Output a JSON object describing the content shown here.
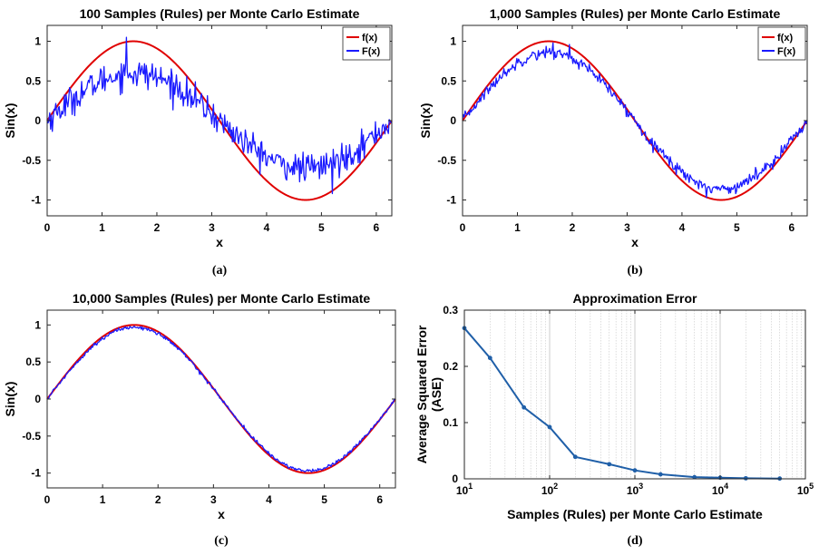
{
  "colors": {
    "f_line": "#e00000",
    "F_line": "#1a1aff",
    "error_line": "#1f5fa8",
    "axis": "#262626",
    "grid": "#c8c8c8"
  },
  "chart_data": [
    {
      "panel_letter": "(a)",
      "type": "line",
      "title": "100 Samples (Rules) per Monte Carlo Estimate",
      "xlabel": "x",
      "ylabel": "Sin(x)",
      "xlim": [
        0,
        6.283
      ],
      "ylim": [
        -1.2,
        1.2
      ],
      "xticks": [
        0,
        1,
        2,
        3,
        4,
        5,
        6
      ],
      "yticks": [
        -1,
        -0.5,
        0,
        0.5,
        1
      ],
      "legend": {
        "placement": "top-right"
      },
      "series": [
        {
          "name": "f(x)",
          "function": "sin(x)",
          "points": 300
        },
        {
          "name": "F(x)",
          "function": "sin(x) estimate",
          "points": 400,
          "noise_sd": 0.09,
          "envelope": 0.6,
          "spikes": [
            [
              1.45,
              1.05
            ],
            [
              5.2,
              -0.92
            ]
          ]
        }
      ]
    },
    {
      "panel_letter": "(b)",
      "type": "line",
      "title": "1,000 Samples (Rules) per Monte Carlo Estimate",
      "xlabel": "x",
      "ylabel": "Sin(x)",
      "xlim": [
        0,
        6.283
      ],
      "ylim": [
        -1.2,
        1.2
      ],
      "xticks": [
        0,
        1,
        2,
        3,
        4,
        5,
        6
      ],
      "yticks": [
        -1,
        -0.5,
        0,
        0.5,
        1
      ],
      "legend": {
        "placement": "top-right"
      },
      "series": [
        {
          "name": "f(x)",
          "function": "sin(x)",
          "points": 300
        },
        {
          "name": "F(x)",
          "function": "sin(x) estimate",
          "points": 400,
          "noise_sd": 0.035,
          "envelope": 0.86,
          "spikes": [
            [
              1.65,
              0.98
            ],
            [
              1.95,
              0.96
            ],
            [
              4.45,
              -0.97
            ]
          ]
        }
      ]
    },
    {
      "panel_letter": "(c)",
      "type": "line",
      "title": "10,000 Samples (Rules) per Monte Carlo Estimate",
      "xlabel": "x",
      "ylabel": "Sin(x)",
      "xlim": [
        0,
        6.283
      ],
      "ylim": [
        -1.2,
        1.2
      ],
      "xticks": [
        0,
        1,
        2,
        3,
        4,
        5,
        6
      ],
      "yticks": [
        -1,
        -0.5,
        0,
        0.5,
        1
      ],
      "legend": null,
      "series": [
        {
          "name": "f(x)",
          "function": "sin(x)",
          "points": 300
        },
        {
          "name": "F(x)",
          "function": "sin(x) estimate",
          "points": 400,
          "noise_sd": 0.012,
          "envelope": 0.97,
          "spikes": []
        }
      ]
    },
    {
      "panel_letter": "(d)",
      "type": "line",
      "title": "Approximation Error",
      "xlabel": "Samples (Rules) per Monte Carlo Estimate",
      "ylabel_lines": [
        "Average Squared Error",
        "(ASE)"
      ],
      "x_scale": "log",
      "xlim": [
        10,
        100000
      ],
      "ylim": [
        0,
        0.3
      ],
      "xticks": [
        10,
        100,
        1000,
        10000,
        100000
      ],
      "xtick_exponents": [
        "1",
        "2",
        "3",
        "4",
        "5"
      ],
      "xtick_base": "10",
      "yticks": [
        0,
        0.1,
        0.2,
        0.3
      ],
      "grid": "vertical minor and major",
      "legend": null,
      "series": [
        {
          "x": [
            10,
            20,
            50,
            100,
            200,
            500,
            1000,
            2000,
            5000,
            10000,
            20000,
            50000
          ],
          "values": [
            0.268,
            0.215,
            0.127,
            0.092,
            0.039,
            0.026,
            0.015,
            0.008,
            0.003,
            0.002,
            0.001,
            0.0005
          ]
        }
      ]
    }
  ]
}
